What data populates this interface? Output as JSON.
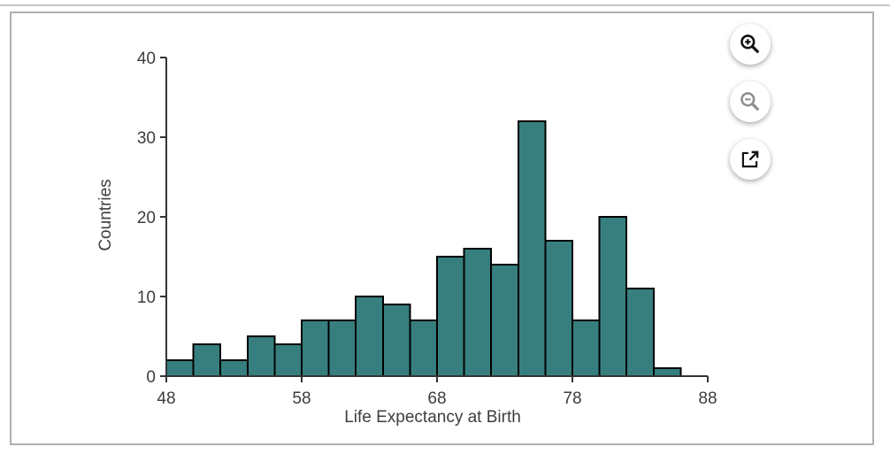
{
  "chart_data": {
    "type": "bar",
    "subtype": "histogram",
    "title": "",
    "xlabel": "Life Expectancy at Birth",
    "ylabel": "Countries",
    "bin_start": 48,
    "bin_width": 2,
    "values": [
      2,
      4,
      2,
      5,
      4,
      7,
      7,
      10,
      9,
      7,
      15,
      16,
      14,
      32,
      17,
      7,
      20,
      11,
      1
    ],
    "x_ticks": [
      48,
      58,
      68,
      78,
      88
    ],
    "y_ticks": [
      0,
      10,
      20,
      30,
      40
    ],
    "xlim": [
      48,
      88
    ],
    "ylim": [
      0,
      40
    ],
    "grid": false,
    "legend": "none",
    "colors": {
      "bar_fill": "#377f7f",
      "bar_stroke": "#000000",
      "axis": "#333333",
      "tick_text": "#3d3d3d",
      "card_border": "#b0b0b0"
    }
  },
  "toolbar": {
    "buttons": [
      {
        "name": "zoom-in",
        "icon": "zoom-in-icon"
      },
      {
        "name": "zoom-out",
        "icon": "zoom-out-icon"
      },
      {
        "name": "open-external",
        "icon": "open-external-icon"
      }
    ]
  }
}
